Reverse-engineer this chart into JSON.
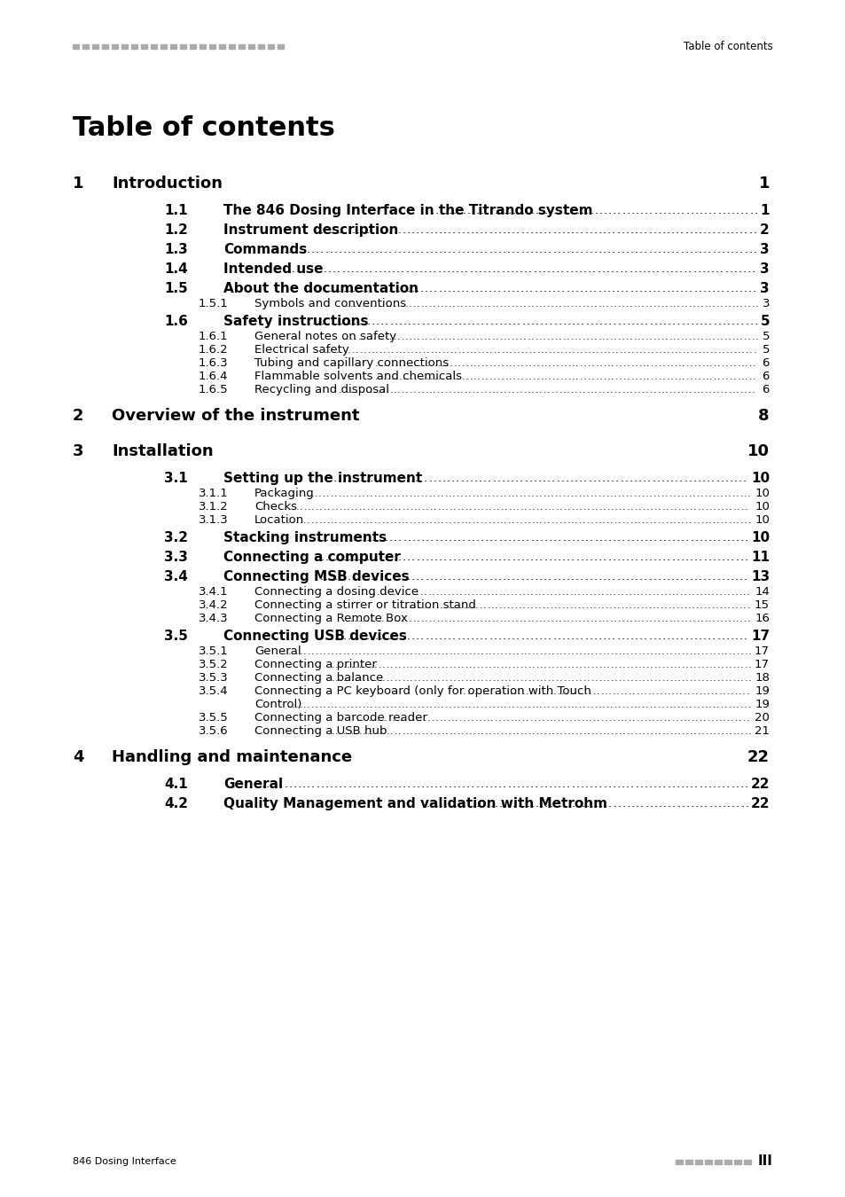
{
  "page_bg": "#ffffff",
  "header_bar_color": "#aaaaaa",
  "header_text": "Table of contents",
  "footer_left": "846 Dosing Interface",
  "title": "Table of contents",
  "entries": [
    {
      "level": 1,
      "num": "1",
      "text": "Introduction",
      "page": "1",
      "bold": true,
      "dots": false,
      "extra_space_before": 0,
      "extra_space_after": 6
    },
    {
      "level": 2,
      "num": "1.1",
      "text": "The 846 Dosing Interface in the Titrando system",
      "page": "1",
      "bold": true,
      "dots": true,
      "extra_space_before": 4,
      "extra_space_after": 0
    },
    {
      "level": 2,
      "num": "1.2",
      "text": "Instrument description",
      "page": "2",
      "bold": true,
      "dots": true,
      "extra_space_before": 4,
      "extra_space_after": 0
    },
    {
      "level": 2,
      "num": "1.3",
      "text": "Commands",
      "page": "3",
      "bold": true,
      "dots": true,
      "extra_space_before": 4,
      "extra_space_after": 0
    },
    {
      "level": 2,
      "num": "1.4",
      "text": "Intended use",
      "page": "3",
      "bold": true,
      "dots": true,
      "extra_space_before": 4,
      "extra_space_after": 0
    },
    {
      "level": 2,
      "num": "1.5",
      "text": "About the documentation",
      "page": "3",
      "bold": true,
      "dots": true,
      "extra_space_before": 4,
      "extra_space_after": 0
    },
    {
      "level": 3,
      "num": "1.5.1",
      "text": "Symbols and conventions",
      "page": "3",
      "bold": false,
      "dots": true,
      "extra_space_before": 0,
      "extra_space_after": 0
    },
    {
      "level": 2,
      "num": "1.6",
      "text": "Safety instructions",
      "page": "5",
      "bold": true,
      "dots": true,
      "extra_space_before": 4,
      "extra_space_after": 0
    },
    {
      "level": 3,
      "num": "1.6.1",
      "text": "General notes on safety",
      "page": "5",
      "bold": false,
      "dots": true,
      "extra_space_before": 0,
      "extra_space_after": 0
    },
    {
      "level": 3,
      "num": "1.6.2",
      "text": "Electrical safety",
      "page": "5",
      "bold": false,
      "dots": true,
      "extra_space_before": 0,
      "extra_space_after": 0
    },
    {
      "level": 3,
      "num": "1.6.3",
      "text": "Tubing and capillary connections",
      "page": "6",
      "bold": false,
      "dots": true,
      "extra_space_before": 0,
      "extra_space_after": 0
    },
    {
      "level": 3,
      "num": "1.6.4",
      "text": "Flammable solvents and chemicals",
      "page": "6",
      "bold": false,
      "dots": true,
      "extra_space_before": 0,
      "extra_space_after": 0
    },
    {
      "level": 3,
      "num": "1.6.5",
      "text": "Recycling and disposal",
      "page": "6",
      "bold": false,
      "dots": true,
      "extra_space_before": 0,
      "extra_space_after": 0
    },
    {
      "level": 1,
      "num": "2",
      "text": "Overview of the instrument",
      "page": "8",
      "bold": true,
      "dots": false,
      "extra_space_before": 12,
      "extra_space_after": 6
    },
    {
      "level": 1,
      "num": "3",
      "text": "Installation",
      "page": "10",
      "bold": true,
      "dots": false,
      "extra_space_before": 12,
      "extra_space_after": 6
    },
    {
      "level": 2,
      "num": "3.1",
      "text": "Setting up the instrument",
      "page": "10",
      "bold": true,
      "dots": true,
      "extra_space_before": 4,
      "extra_space_after": 0
    },
    {
      "level": 3,
      "num": "3.1.1",
      "text": "Packaging",
      "page": "10",
      "bold": false,
      "dots": true,
      "extra_space_before": 0,
      "extra_space_after": 0
    },
    {
      "level": 3,
      "num": "3.1.2",
      "text": "Checks",
      "page": "10",
      "bold": false,
      "dots": true,
      "extra_space_before": 0,
      "extra_space_after": 0
    },
    {
      "level": 3,
      "num": "3.1.3",
      "text": "Location",
      "page": "10",
      "bold": false,
      "dots": true,
      "extra_space_before": 0,
      "extra_space_after": 0
    },
    {
      "level": 2,
      "num": "3.2",
      "text": "Stacking instruments",
      "page": "10",
      "bold": true,
      "dots": true,
      "extra_space_before": 4,
      "extra_space_after": 0
    },
    {
      "level": 2,
      "num": "3.3",
      "text": "Connecting a computer",
      "page": "11",
      "bold": true,
      "dots": true,
      "extra_space_before": 4,
      "extra_space_after": 0
    },
    {
      "level": 2,
      "num": "3.4",
      "text": "Connecting MSB devices",
      "page": "13",
      "bold": true,
      "dots": true,
      "extra_space_before": 4,
      "extra_space_after": 0
    },
    {
      "level": 3,
      "num": "3.4.1",
      "text": "Connecting a dosing device",
      "page": "14",
      "bold": false,
      "dots": true,
      "extra_space_before": 0,
      "extra_space_after": 0
    },
    {
      "level": 3,
      "num": "3.4.2",
      "text": "Connecting a stirrer or titration stand",
      "page": "15",
      "bold": false,
      "dots": true,
      "extra_space_before": 0,
      "extra_space_after": 0
    },
    {
      "level": 3,
      "num": "3.4.3",
      "text": "Connecting a Remote Box",
      "page": "16",
      "bold": false,
      "dots": true,
      "extra_space_before": 0,
      "extra_space_after": 0
    },
    {
      "level": 2,
      "num": "3.5",
      "text": "Connecting USB devices",
      "page": "17",
      "bold": true,
      "dots": true,
      "extra_space_before": 4,
      "extra_space_after": 0
    },
    {
      "level": 3,
      "num": "3.5.1",
      "text": "General",
      "page": "17",
      "bold": false,
      "dots": true,
      "extra_space_before": 0,
      "extra_space_after": 0
    },
    {
      "level": 3,
      "num": "3.5.2",
      "text": "Connecting a printer",
      "page": "17",
      "bold": false,
      "dots": true,
      "extra_space_before": 0,
      "extra_space_after": 0
    },
    {
      "level": 3,
      "num": "3.5.3",
      "text": "Connecting a balance",
      "page": "18",
      "bold": false,
      "dots": true,
      "extra_space_before": 0,
      "extra_space_after": 0
    },
    {
      "level": 3,
      "num": "3.5.4",
      "text": "Connecting a PC keyboard (only for operation with Touch\nControl)",
      "page": "19",
      "bold": false,
      "dots": true,
      "extra_space_before": 0,
      "extra_space_after": 0
    },
    {
      "level": 3,
      "num": "3.5.5",
      "text": "Connecting a barcode reader",
      "page": "20",
      "bold": false,
      "dots": true,
      "extra_space_before": 0,
      "extra_space_after": 0
    },
    {
      "level": 3,
      "num": "3.5.6",
      "text": "Connecting a USB hub",
      "page": "21",
      "bold": false,
      "dots": true,
      "extra_space_before": 0,
      "extra_space_after": 0
    },
    {
      "level": 1,
      "num": "4",
      "text": "Handling and maintenance",
      "page": "22",
      "bold": true,
      "dots": false,
      "extra_space_before": 12,
      "extra_space_after": 6
    },
    {
      "level": 2,
      "num": "4.1",
      "text": "General",
      "page": "22",
      "bold": true,
      "dots": true,
      "extra_space_before": 4,
      "extra_space_after": 0
    },
    {
      "level": 2,
      "num": "4.2",
      "text": "Quality Management and validation with Metrohm",
      "page": "22",
      "bold": true,
      "dots": true,
      "extra_space_before": 4,
      "extra_space_after": 0
    }
  ]
}
